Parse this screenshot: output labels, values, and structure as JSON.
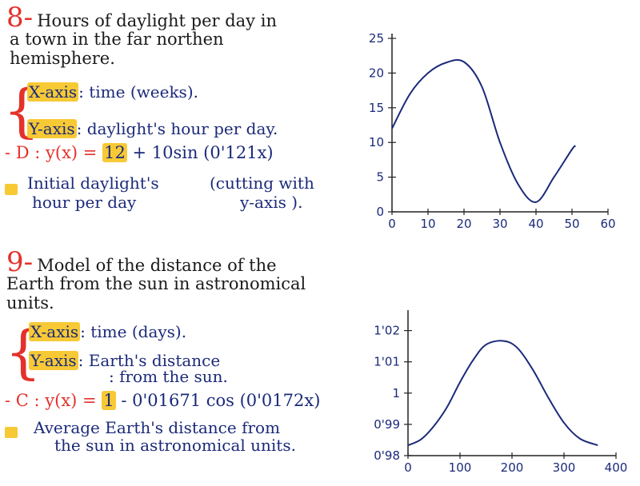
{
  "colors": {
    "accent": "#e4312b",
    "highlight": "#f7c935",
    "ink": "#1b2a7a",
    "text": "#1a1a1a"
  },
  "notes": {
    "p8": {
      "number": "8",
      "dash": "-",
      "title_lines": [
        "Hours of daylight per day in",
        "a town in the far northen",
        "hemisphere."
      ],
      "x_axis_label": "X-axis",
      "x_axis_desc": ": time (weeks).",
      "y_axis_label": "Y-axis",
      "y_axis_desc": ": daylight's hour per day.",
      "formula_prefix": "- D : y(x) = ",
      "formula_highlight": "12",
      "formula_suffix": " + 10sin (0'121x)",
      "bullet_text_lines": [
        "Initial daylight's",
        "hour per day"
      ],
      "aside_lines": [
        "(cutting with",
        "y-axis )."
      ]
    },
    "p9": {
      "number": "9",
      "dash": "-",
      "title_lines": [
        "Model of the distance of the",
        "Earth from the sun in astronomical",
        "units."
      ],
      "x_axis_label": "X-axis",
      "x_axis_desc": ": time (days).",
      "y_axis_label": "Y-axis",
      "y_axis_desc_lines": [
        ": Earth's distance",
        ": from the sun."
      ],
      "formula_prefix": "- C : y(x) = ",
      "formula_highlight": "1",
      "formula_suffix": " - 0'01671 cos (0'0172x)",
      "bullet_text_lines": [
        "Average Earth's distance from",
        "the sun in astronomical units."
      ]
    }
  },
  "chart_data": [
    {
      "type": "line",
      "title": "",
      "xlabel": "",
      "ylabel": "",
      "x_ticks": [
        "0",
        "10",
        "20",
        "30",
        "40",
        "50",
        "60"
      ],
      "y_ticks": [
        "0",
        "5",
        "10",
        "15",
        "20",
        "25"
      ],
      "xlim": [
        0,
        60
      ],
      "ylim": [
        0,
        25
      ],
      "grid": false,
      "series": [
        {
          "x": [
            0,
            5,
            10,
            15,
            20,
            25,
            30,
            35,
            40,
            45,
            50,
            51
          ],
          "y": [
            12,
            17,
            20,
            21.5,
            21.6,
            18,
            10,
            4,
            1.4,
            5,
            9,
            9.5
          ]
        }
      ]
    },
    {
      "type": "line",
      "title": "",
      "xlabel": "",
      "ylabel": "",
      "x_ticks": [
        "0",
        "100",
        "200",
        "300",
        "400"
      ],
      "y_ticks": [
        "0'98",
        "0'99",
        "1",
        "1'01",
        "1'02"
      ],
      "xlim": [
        0,
        400
      ],
      "ylim": [
        0.98,
        1.025
      ],
      "grid": false,
      "series": [
        {
          "x": [
            0,
            25,
            50,
            75,
            100,
            125,
            150,
            183,
            210,
            240,
            270,
            300,
            330,
            365
          ],
          "y": [
            0.9833,
            0.9852,
            0.9895,
            0.9955,
            1.0035,
            1.0105,
            1.0155,
            1.0167,
            1.0145,
            1.0075,
            0.9985,
            0.9905,
            0.9855,
            0.9833
          ]
        }
      ]
    }
  ]
}
